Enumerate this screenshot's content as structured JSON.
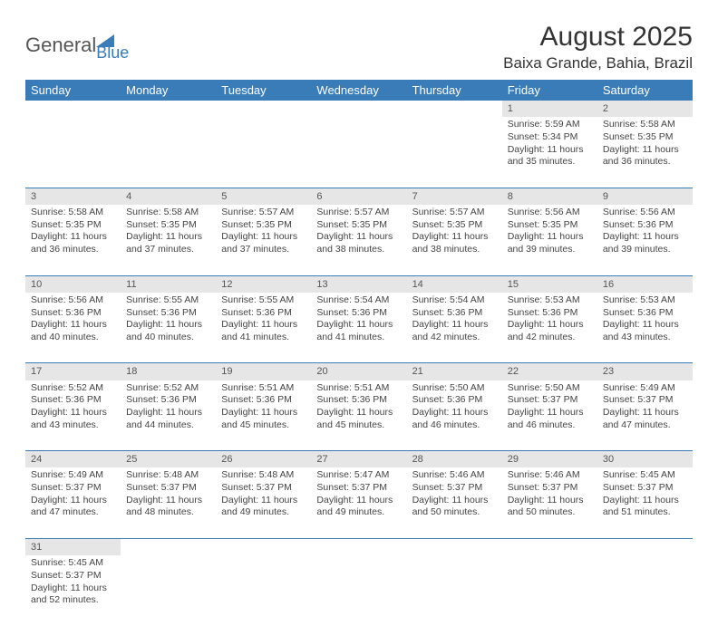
{
  "logo": {
    "general": "General",
    "blue": "Blue"
  },
  "title": "August 2025",
  "location": "Baixa Grande, Bahia, Brazil",
  "colors": {
    "header_bg": "#3a7cb8",
    "header_fg": "#ffffff",
    "daynum_bg": "#e6e6e6",
    "border": "#3a7cb8",
    "text": "#444444"
  },
  "weekdays": [
    "Sunday",
    "Monday",
    "Tuesday",
    "Wednesday",
    "Thursday",
    "Friday",
    "Saturday"
  ],
  "weeks": [
    [
      null,
      null,
      null,
      null,
      null,
      {
        "n": "1",
        "sr": "5:59 AM",
        "ss": "5:34 PM",
        "dl": "11 hours and 35 minutes."
      },
      {
        "n": "2",
        "sr": "5:58 AM",
        "ss": "5:35 PM",
        "dl": "11 hours and 36 minutes."
      }
    ],
    [
      {
        "n": "3",
        "sr": "5:58 AM",
        "ss": "5:35 PM",
        "dl": "11 hours and 36 minutes."
      },
      {
        "n": "4",
        "sr": "5:58 AM",
        "ss": "5:35 PM",
        "dl": "11 hours and 37 minutes."
      },
      {
        "n": "5",
        "sr": "5:57 AM",
        "ss": "5:35 PM",
        "dl": "11 hours and 37 minutes."
      },
      {
        "n": "6",
        "sr": "5:57 AM",
        "ss": "5:35 PM",
        "dl": "11 hours and 38 minutes."
      },
      {
        "n": "7",
        "sr": "5:57 AM",
        "ss": "5:35 PM",
        "dl": "11 hours and 38 minutes."
      },
      {
        "n": "8",
        "sr": "5:56 AM",
        "ss": "5:35 PM",
        "dl": "11 hours and 39 minutes."
      },
      {
        "n": "9",
        "sr": "5:56 AM",
        "ss": "5:36 PM",
        "dl": "11 hours and 39 minutes."
      }
    ],
    [
      {
        "n": "10",
        "sr": "5:56 AM",
        "ss": "5:36 PM",
        "dl": "11 hours and 40 minutes."
      },
      {
        "n": "11",
        "sr": "5:55 AM",
        "ss": "5:36 PM",
        "dl": "11 hours and 40 minutes."
      },
      {
        "n": "12",
        "sr": "5:55 AM",
        "ss": "5:36 PM",
        "dl": "11 hours and 41 minutes."
      },
      {
        "n": "13",
        "sr": "5:54 AM",
        "ss": "5:36 PM",
        "dl": "11 hours and 41 minutes."
      },
      {
        "n": "14",
        "sr": "5:54 AM",
        "ss": "5:36 PM",
        "dl": "11 hours and 42 minutes."
      },
      {
        "n": "15",
        "sr": "5:53 AM",
        "ss": "5:36 PM",
        "dl": "11 hours and 42 minutes."
      },
      {
        "n": "16",
        "sr": "5:53 AM",
        "ss": "5:36 PM",
        "dl": "11 hours and 43 minutes."
      }
    ],
    [
      {
        "n": "17",
        "sr": "5:52 AM",
        "ss": "5:36 PM",
        "dl": "11 hours and 43 minutes."
      },
      {
        "n": "18",
        "sr": "5:52 AM",
        "ss": "5:36 PM",
        "dl": "11 hours and 44 minutes."
      },
      {
        "n": "19",
        "sr": "5:51 AM",
        "ss": "5:36 PM",
        "dl": "11 hours and 45 minutes."
      },
      {
        "n": "20",
        "sr": "5:51 AM",
        "ss": "5:36 PM",
        "dl": "11 hours and 45 minutes."
      },
      {
        "n": "21",
        "sr": "5:50 AM",
        "ss": "5:36 PM",
        "dl": "11 hours and 46 minutes."
      },
      {
        "n": "22",
        "sr": "5:50 AM",
        "ss": "5:37 PM",
        "dl": "11 hours and 46 minutes."
      },
      {
        "n": "23",
        "sr": "5:49 AM",
        "ss": "5:37 PM",
        "dl": "11 hours and 47 minutes."
      }
    ],
    [
      {
        "n": "24",
        "sr": "5:49 AM",
        "ss": "5:37 PM",
        "dl": "11 hours and 47 minutes."
      },
      {
        "n": "25",
        "sr": "5:48 AM",
        "ss": "5:37 PM",
        "dl": "11 hours and 48 minutes."
      },
      {
        "n": "26",
        "sr": "5:48 AM",
        "ss": "5:37 PM",
        "dl": "11 hours and 49 minutes."
      },
      {
        "n": "27",
        "sr": "5:47 AM",
        "ss": "5:37 PM",
        "dl": "11 hours and 49 minutes."
      },
      {
        "n": "28",
        "sr": "5:46 AM",
        "ss": "5:37 PM",
        "dl": "11 hours and 50 minutes."
      },
      {
        "n": "29",
        "sr": "5:46 AM",
        "ss": "5:37 PM",
        "dl": "11 hours and 50 minutes."
      },
      {
        "n": "30",
        "sr": "5:45 AM",
        "ss": "5:37 PM",
        "dl": "11 hours and 51 minutes."
      }
    ],
    [
      {
        "n": "31",
        "sr": "5:45 AM",
        "ss": "5:37 PM",
        "dl": "11 hours and 52 minutes."
      },
      null,
      null,
      null,
      null,
      null,
      null
    ]
  ],
  "labels": {
    "sunrise": "Sunrise:",
    "sunset": "Sunset:",
    "daylight": "Daylight:"
  }
}
